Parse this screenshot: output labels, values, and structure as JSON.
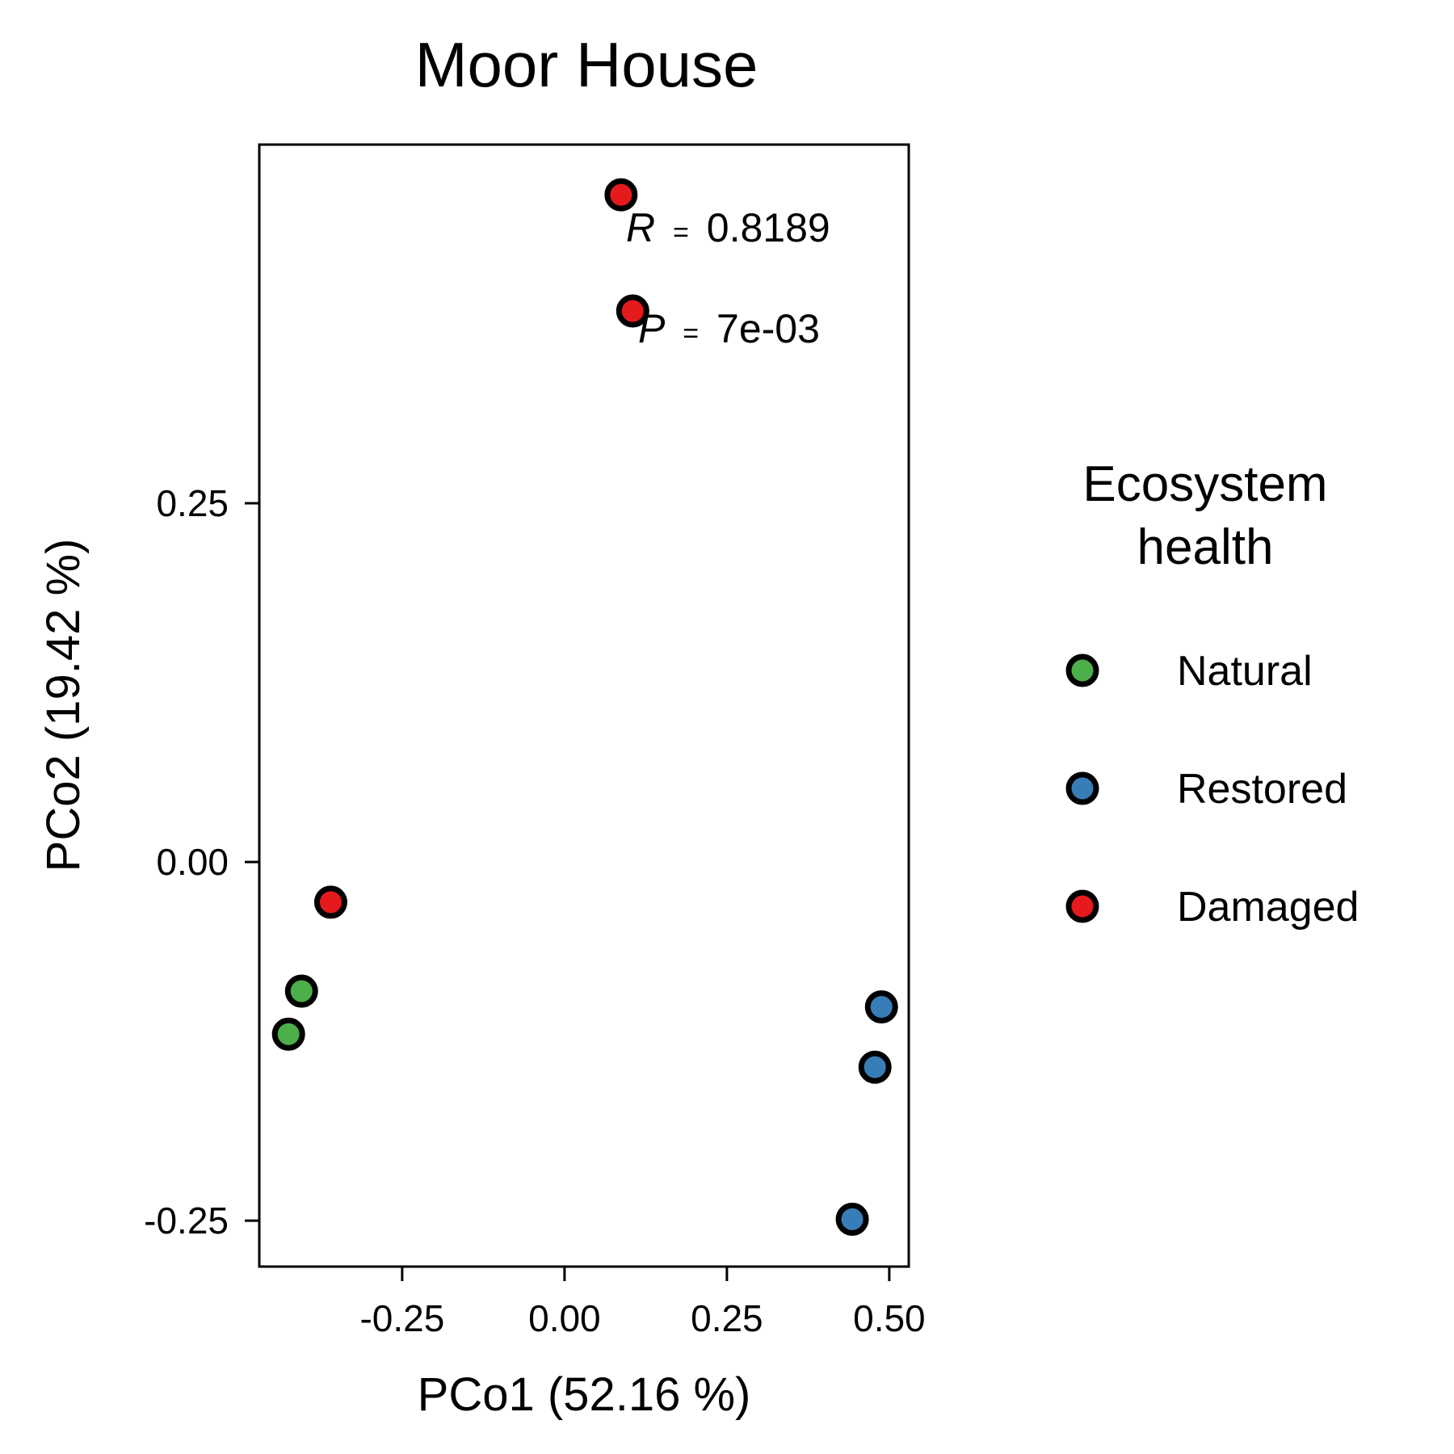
{
  "chart_data": {
    "type": "scatter",
    "title": "Moor House",
    "xlabel": "PCo1 (52.16 %)",
    "ylabel": "PCo2 (19.42 %)",
    "xlim": [
      -0.47,
      0.53
    ],
    "ylim": [
      -0.282,
      0.5
    ],
    "xticks": [
      -0.25,
      0.0,
      0.25,
      0.5
    ],
    "xtick_labels": [
      "-0.25",
      "0.00",
      "0.25",
      "0.50"
    ],
    "yticks": [
      -0.25,
      0.0,
      0.25
    ],
    "ytick_labels": [
      "-0.25",
      "0.00",
      "0.25"
    ],
    "grid": false,
    "legend": {
      "title_lines": [
        "Ecosystem",
        "health"
      ],
      "placement": "right"
    },
    "annotation": {
      "r_symbol": "R",
      "r_value": "0.8189",
      "p_symbol": "P",
      "p_value": "7e-03",
      "equals": "="
    },
    "series": [
      {
        "name": "Natural",
        "color": "#4DAF4A",
        "points": [
          [
            -0.405,
            -0.09
          ],
          [
            -0.425,
            -0.12
          ]
        ]
      },
      {
        "name": "Restored",
        "color": "#377EB8",
        "points": [
          [
            0.488,
            -0.101
          ],
          [
            0.478,
            -0.143
          ],
          [
            0.443,
            -0.249
          ]
        ]
      },
      {
        "name": "Damaged",
        "color": "#E41A1C",
        "points": [
          [
            0.087,
            0.465
          ],
          [
            0.105,
            0.384
          ],
          [
            -0.36,
            -0.028
          ]
        ]
      }
    ]
  }
}
